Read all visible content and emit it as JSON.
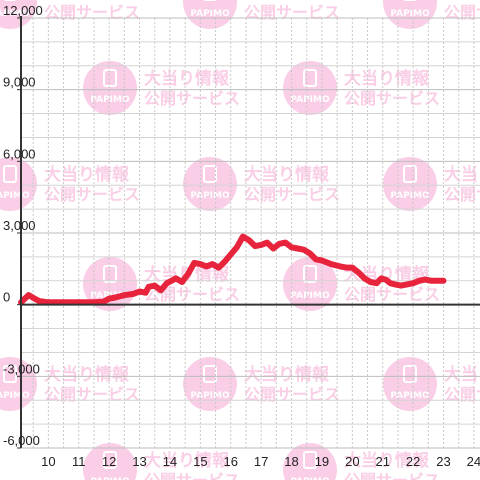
{
  "watermark": {
    "line1": "大当り情報",
    "line2": "公開サービス",
    "logo": "PAPIMO",
    "color": "#f9c6e2"
  },
  "chart_data": {
    "type": "line",
    "title": "",
    "xlabel": "",
    "ylabel": "",
    "xlim": [
      9.1,
      24.2
    ],
    "ylim": [
      -6000,
      12000
    ],
    "x_ticks": [
      10,
      11,
      12,
      13,
      14,
      15,
      16,
      17,
      18,
      19,
      20,
      21,
      22,
      23,
      24
    ],
    "x_tick_labels": [
      "10",
      "11",
      "12",
      "13",
      "14",
      "15",
      "16",
      "17",
      "18",
      "19",
      "20",
      "21",
      "22",
      "23",
      "24"
    ],
    "y_ticks": [
      -6000,
      -3000,
      0,
      3000,
      6000,
      9000,
      12000
    ],
    "y_tick_labels": [
      "-6,000",
      "-3,000",
      "0",
      "3,000",
      "6,000",
      "9,000",
      "12,000"
    ],
    "grid": true,
    "line_color": "#e8243c",
    "series": [
      {
        "x": [
          9.1,
          9.35,
          9.55,
          9.7,
          10.0,
          10.5,
          11.0,
          11.5,
          11.8,
          12.0,
          12.2,
          12.5,
          12.8,
          13.0,
          13.2,
          13.3,
          13.5,
          13.7,
          13.9,
          14.2,
          14.4,
          14.6,
          14.8,
          15.0,
          15.2,
          15.4,
          15.6,
          15.8,
          16.0,
          16.2,
          16.4,
          16.6,
          16.8,
          17.0,
          17.2,
          17.4,
          17.6,
          17.8,
          18.0,
          18.2,
          18.4,
          18.6,
          18.8,
          19.0,
          19.3,
          19.6,
          19.8,
          20.0,
          20.2,
          20.4,
          20.6,
          20.8,
          20.95,
          21.1,
          21.25,
          21.4,
          21.6,
          21.8,
          22.0,
          22.2,
          22.4,
          22.6,
          22.8,
          23.0
        ],
        "y": [
          100,
          400,
          250,
          150,
          100,
          100,
          100,
          100,
          120,
          250,
          300,
          400,
          450,
          550,
          500,
          750,
          800,
          600,
          900,
          1100,
          950,
          1300,
          1750,
          1700,
          1600,
          1700,
          1550,
          1800,
          2100,
          2400,
          2850,
          2700,
          2450,
          2500,
          2600,
          2350,
          2550,
          2600,
          2400,
          2350,
          2300,
          2150,
          1900,
          1850,
          1700,
          1600,
          1550,
          1550,
          1350,
          1100,
          950,
          900,
          1100,
          1050,
          900,
          850,
          800,
          850,
          900,
          1000,
          1050,
          1000,
          1000,
          1000
        ]
      }
    ]
  }
}
